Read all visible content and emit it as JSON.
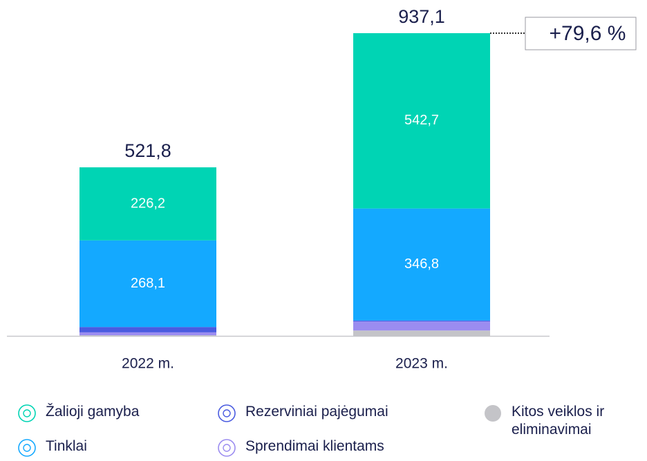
{
  "chart_data": {
    "type": "stacked-bar",
    "categories": [
      "2022 m.",
      "2023 m."
    ],
    "series": [
      {
        "name": "Žalioji gamyba",
        "color": "#00d4b4",
        "values": [
          226.2,
          542.7
        ],
        "value_labels": [
          "226,2",
          "542,7"
        ]
      },
      {
        "name": "Tinklai",
        "color": "#14a9ff",
        "values": [
          268.1,
          346.8
        ],
        "value_labels": [
          "268,1",
          "346,8"
        ]
      },
      {
        "name": "Rezerviniai pajėgumai",
        "color": "#4a5be0",
        "values": [
          16.5,
          3.0
        ],
        "value_labels": [
          null,
          null
        ]
      },
      {
        "name": "Sprendimai klientams",
        "color": "#9b8cf0",
        "values": [
          9.0,
          28.0
        ],
        "value_labels": [
          null,
          null
        ]
      },
      {
        "name": "Kitos veiklos ir eliminavimai",
        "color": "#c4c4c8",
        "values": [
          2.0,
          16.6
        ],
        "value_labels": [
          null,
          null
        ]
      }
    ],
    "totals": [
      521.8,
      937.1
    ],
    "total_labels": [
      "521,8",
      "937,1"
    ],
    "annotation": "+79,6 %"
  }
}
